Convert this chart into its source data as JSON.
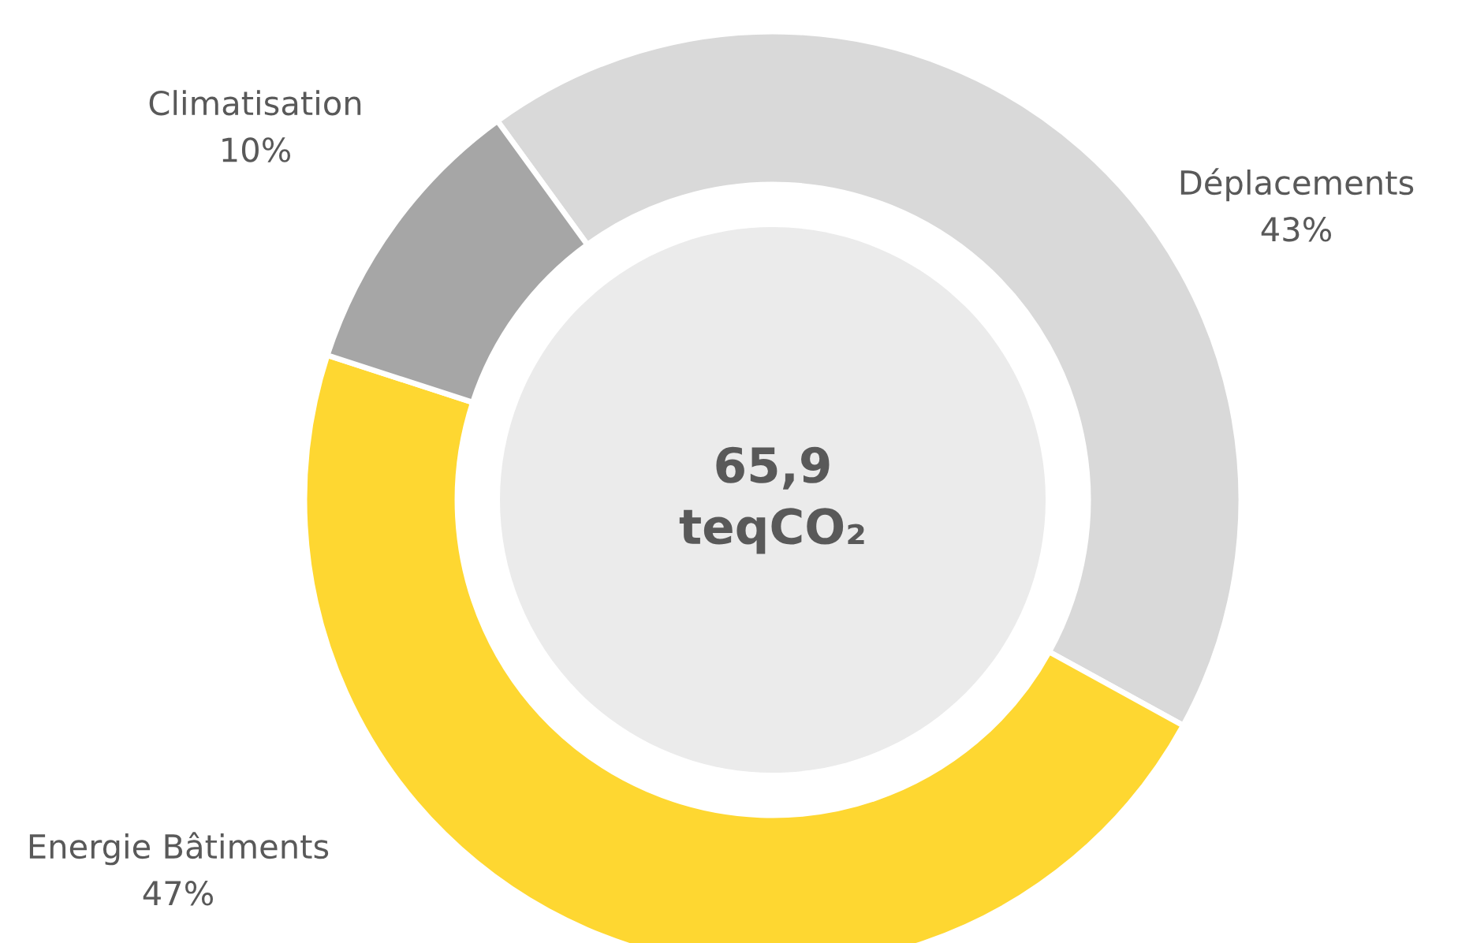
{
  "chart_data": {
    "type": "donut",
    "categories": [
      "Déplacements",
      "Energie Bâtiments",
      "Climatisation"
    ],
    "values": [
      43,
      47,
      10
    ],
    "colors": [
      "#d9d9d9",
      "#fed731",
      "#a6a6a6"
    ],
    "value_labels": [
      "43%",
      "47%",
      "10%"
    ],
    "annotations": [
      "65,9\nteqCO₂"
    ]
  }
}
